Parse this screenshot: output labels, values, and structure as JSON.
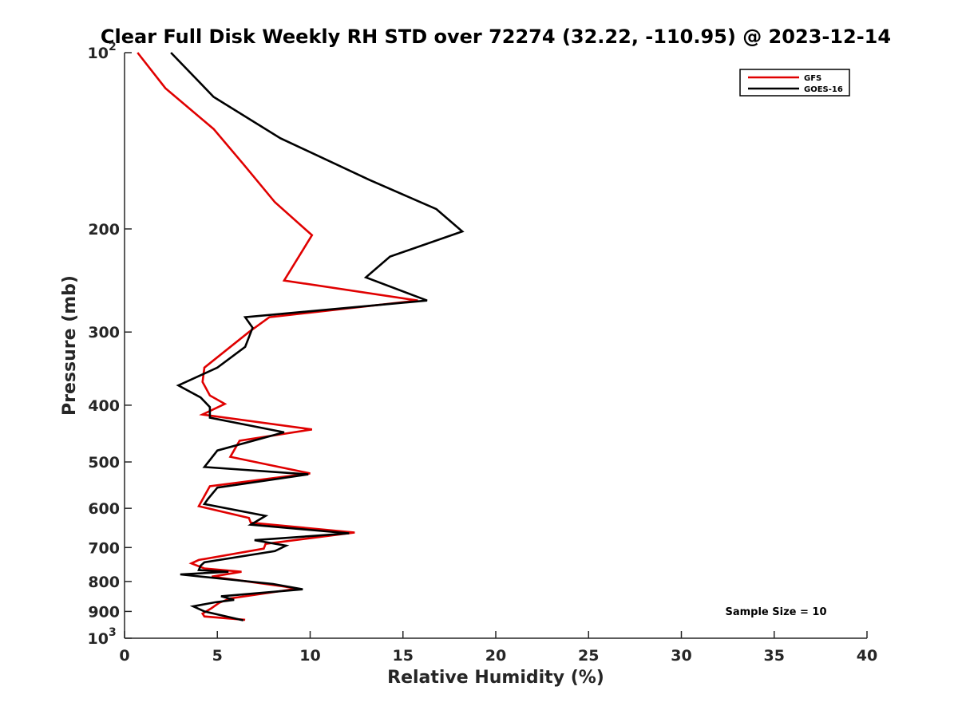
{
  "chart_data": {
    "type": "line",
    "title": "Clear Full Disk Weekly RH STD over 72274 (32.22, -110.95) @ 2023-12-14",
    "xlabel": "Relative Humidity (%)",
    "ylabel": "Pressure (mb)",
    "xlim": [
      0,
      40
    ],
    "ylim": [
      100,
      1000
    ],
    "y_scale": "log",
    "y_reversed": true,
    "grid": false,
    "legend_position": "top-right",
    "x_ticks": [
      {
        "value": 0,
        "label": "0"
      },
      {
        "value": 5,
        "label": "5"
      },
      {
        "value": 10,
        "label": "10"
      },
      {
        "value": 15,
        "label": "15"
      },
      {
        "value": 20,
        "label": "20"
      },
      {
        "value": 25,
        "label": "25"
      },
      {
        "value": 30,
        "label": "30"
      },
      {
        "value": 35,
        "label": "35"
      },
      {
        "value": 40,
        "label": "40"
      }
    ],
    "y_ticks": [
      {
        "value": 100,
        "label": "10",
        "exp": "2"
      },
      {
        "value": 200,
        "label": "200"
      },
      {
        "value": 300,
        "label": "300"
      },
      {
        "value": 400,
        "label": "400"
      },
      {
        "value": 500,
        "label": "500"
      },
      {
        "value": 600,
        "label": "600"
      },
      {
        "value": 700,
        "label": "700"
      },
      {
        "value": 800,
        "label": "800"
      },
      {
        "value": 900,
        "label": "900"
      },
      {
        "value": 1000,
        "label": "10",
        "exp": "3"
      }
    ],
    "annotation": "Sample Size = 10",
    "series": [
      {
        "name": "GFS",
        "color": "#e00000",
        "points": [
          [
            0.7,
            100
          ],
          [
            2.2,
            115
          ],
          [
            4.8,
            135
          ],
          [
            6.4,
            155
          ],
          [
            8.1,
            180
          ],
          [
            10.1,
            205
          ],
          [
            8.6,
            245
          ],
          [
            15.8,
            265
          ],
          [
            7.8,
            283
          ],
          [
            6.7,
            300
          ],
          [
            4.3,
            345
          ],
          [
            4.2,
            365
          ],
          [
            4.6,
            385
          ],
          [
            5.4,
            398
          ],
          [
            4.2,
            415
          ],
          [
            10.1,
            440
          ],
          [
            6.2,
            460
          ],
          [
            5.7,
            490
          ],
          [
            10.0,
            523
          ],
          [
            4.6,
            550
          ],
          [
            4.0,
            595
          ],
          [
            6.7,
            623
          ],
          [
            6.8,
            635
          ],
          [
            12.4,
            660
          ],
          [
            7.6,
            690
          ],
          [
            7.5,
            703
          ],
          [
            4.0,
            735
          ],
          [
            3.6,
            745
          ],
          [
            4.3,
            760
          ],
          [
            6.3,
            770
          ],
          [
            4.7,
            785
          ],
          [
            8.5,
            815
          ],
          [
            9.3,
            823
          ],
          [
            5.7,
            855
          ],
          [
            5.1,
            870
          ],
          [
            4.7,
            888
          ],
          [
            4.2,
            908
          ],
          [
            4.3,
            918
          ],
          [
            6.5,
            930
          ]
        ]
      },
      {
        "name": "GOES-16",
        "color": "#000000",
        "points": [
          [
            2.5,
            100
          ],
          [
            4.8,
            119
          ],
          [
            8.4,
            140
          ],
          [
            13.2,
            165
          ],
          [
            16.8,
            185
          ],
          [
            18.2,
            202
          ],
          [
            14.3,
            223
          ],
          [
            13.0,
            242
          ],
          [
            16.3,
            265
          ],
          [
            6.5,
            283
          ],
          [
            6.9,
            295
          ],
          [
            6.5,
            318
          ],
          [
            5.0,
            345
          ],
          [
            2.9,
            370
          ],
          [
            4.1,
            388
          ],
          [
            4.6,
            403
          ],
          [
            4.6,
            420
          ],
          [
            8.6,
            445
          ],
          [
            5.0,
            478
          ],
          [
            4.3,
            510
          ],
          [
            9.9,
            525
          ],
          [
            5.0,
            553
          ],
          [
            4.5,
            578
          ],
          [
            4.3,
            590
          ],
          [
            7.6,
            618
          ],
          [
            6.8,
            640
          ],
          [
            12.1,
            662
          ],
          [
            7.0,
            680
          ],
          [
            8.7,
            695
          ],
          [
            8.1,
            710
          ],
          [
            4.3,
            742
          ],
          [
            4.1,
            752
          ],
          [
            4.0,
            765
          ],
          [
            5.6,
            770
          ],
          [
            3.0,
            778
          ],
          [
            8.0,
            808
          ],
          [
            9.6,
            825
          ],
          [
            5.2,
            848
          ],
          [
            5.9,
            860
          ],
          [
            4.9,
            868
          ],
          [
            3.7,
            882
          ],
          [
            4.3,
            900
          ],
          [
            6.4,
            932
          ]
        ]
      }
    ]
  }
}
